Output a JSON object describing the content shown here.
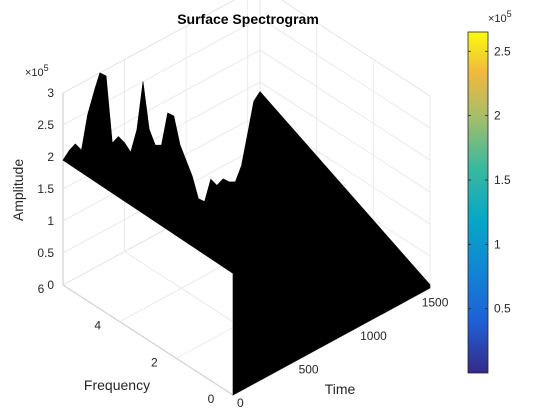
{
  "chart_data": {
    "type": "surface",
    "title": "Surface Spectrogram",
    "xlabel": "Time",
    "ylabel": "Frequency",
    "zlabel": "Amplitude",
    "x_ticks": [
      "0",
      "500",
      "1000",
      "1500"
    ],
    "y_ticks": [
      "0",
      "2",
      "4",
      "6"
    ],
    "z_ticks": [
      "0",
      "0.5",
      "1",
      "1.5",
      "2",
      "2.5",
      "3"
    ],
    "z_exponent_base": "×10",
    "z_exponent_power": "5",
    "xlim": [
      0,
      1600
    ],
    "ylim": [
      0,
      6
    ],
    "zlim": [
      0,
      300000
    ],
    "grid": true,
    "surface_color": "#000000",
    "back_edge_profile": {
      "x": [
        0,
        50,
        100,
        150,
        200,
        260,
        300,
        350,
        400,
        450,
        500,
        550,
        600,
        650,
        700,
        750,
        800,
        850,
        900,
        950,
        1000,
        1050,
        1100,
        1150,
        1200,
        1250,
        1300,
        1350,
        1400,
        1450,
        1500,
        1550,
        1600
      ],
      "amplitude": [
        195000,
        205000,
        210000,
        195000,
        245000,
        280000,
        300000,
        290000,
        180000,
        185000,
        170000,
        150000,
        180000,
        250000,
        170000,
        140000,
        135000,
        180000,
        170000,
        120000,
        90000,
        60000,
        20000,
        10000,
        40000,
        25000,
        30000,
        20000,
        15000,
        35000,
        80000,
        125000,
        135000
      ]
    },
    "colorbar": {
      "ticks": [
        "0.5",
        "1",
        "1.5",
        "2",
        "2.5"
      ],
      "range": [
        0,
        265000
      ],
      "colormap": "parula",
      "exponent_base": "×10",
      "exponent_power": "5"
    }
  }
}
